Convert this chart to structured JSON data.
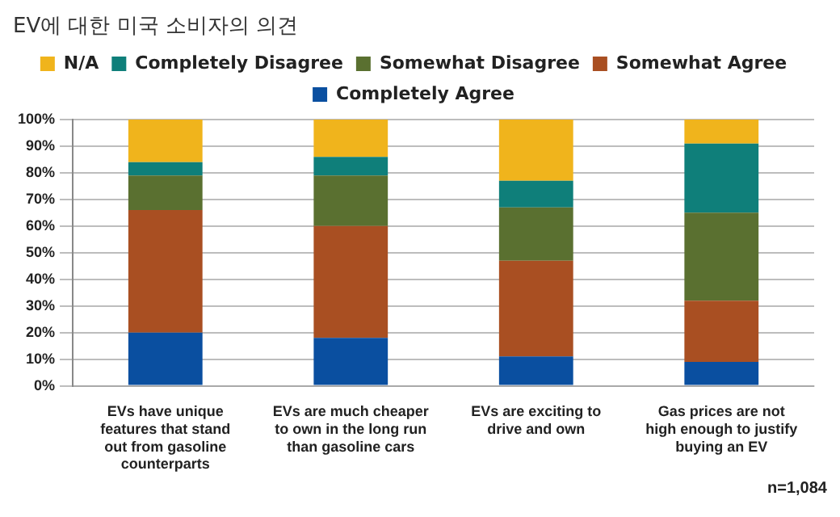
{
  "chart_data": {
    "type": "bar",
    "stacked": true,
    "title": "EV에 대한 미국 소비자의 의견",
    "categories": [
      "EVs have unique features that stand out from gasoline counterparts",
      "EVs are much cheaper to own in the long run than gasoline cars",
      "EVs are exciting to drive and own",
      "Gas prices are not high enough to justify buying an EV"
    ],
    "series": [
      {
        "name": "Completely Agree",
        "color": "#0a4fa0",
        "values": [
          20,
          18,
          11,
          9
        ]
      },
      {
        "name": "Somewhat Agree",
        "color": "#a94f22",
        "values": [
          46,
          42,
          36,
          23
        ]
      },
      {
        "name": "Somewhat Disagree",
        "color": "#5a7030",
        "values": [
          13,
          19,
          20,
          33
        ]
      },
      {
        "name": "Completely Disagree",
        "color": "#0f7f7a",
        "values": [
          5,
          7,
          10,
          26
        ]
      },
      {
        "name": "N/A",
        "color": "#f0b41c",
        "values": [
          16,
          14,
          23,
          9
        ]
      }
    ],
    "ylim": [
      0,
      100
    ],
    "yticks": [
      {
        "value": 0,
        "label": "0%"
      },
      {
        "value": 10,
        "label": "10%"
      },
      {
        "value": 20,
        "label": "20%"
      },
      {
        "value": 30,
        "label": "30%"
      },
      {
        "value": 40,
        "label": "40%"
      },
      {
        "value": 50,
        "label": "50%"
      },
      {
        "value": 60,
        "label": "60%"
      },
      {
        "value": 70,
        "label": "70%"
      },
      {
        "value": 80,
        "label": "80%"
      },
      {
        "value": 90,
        "label": "90%"
      },
      {
        "value": 100,
        "label": "100%"
      }
    ],
    "grid": "y",
    "legend": "top",
    "annotations": [
      "n=1,084"
    ]
  }
}
